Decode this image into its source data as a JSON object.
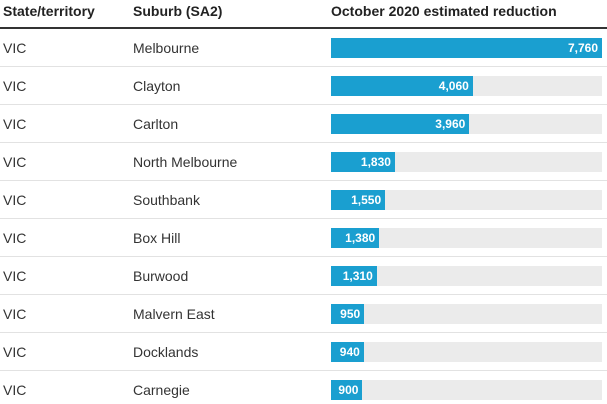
{
  "table": {
    "headers": [
      "State/territory",
      "Suburb (SA2)",
      "October 2020 estimated reduction"
    ],
    "bar_color": "#1a9fd0",
    "rows": [
      {
        "state": "VIC",
        "suburb": "Melbourne",
        "value": 7760,
        "value_label": "7,760"
      },
      {
        "state": "VIC",
        "suburb": "Clayton",
        "value": 4060,
        "value_label": "4,060"
      },
      {
        "state": "VIC",
        "suburb": "Carlton",
        "value": 3960,
        "value_label": "3,960"
      },
      {
        "state": "VIC",
        "suburb": "North Melbourne",
        "value": 1830,
        "value_label": "1,830"
      },
      {
        "state": "VIC",
        "suburb": "Southbank",
        "value": 1550,
        "value_label": "1,550"
      },
      {
        "state": "VIC",
        "suburb": "Box Hill",
        "value": 1380,
        "value_label": "1,380"
      },
      {
        "state": "VIC",
        "suburb": "Burwood",
        "value": 1310,
        "value_label": "1,310"
      },
      {
        "state": "VIC",
        "suburb": "Malvern East",
        "value": 950
      },
      {
        "state": "VIC",
        "suburb": "Docklands",
        "value": 940
      },
      {
        "state": "VIC",
        "suburb": "Carnegie",
        "value": 900
      }
    ]
  }
}
